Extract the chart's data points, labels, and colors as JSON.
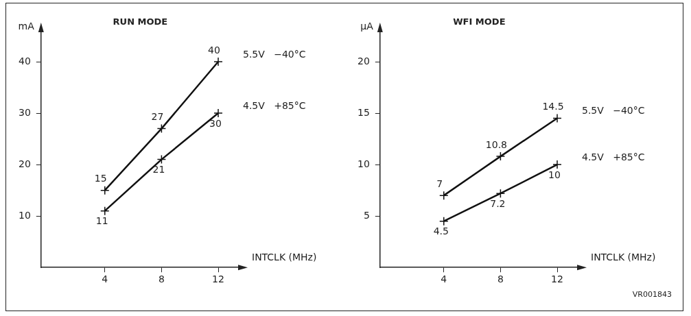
{
  "chart_data": [
    {
      "type": "line",
      "title": "RUN MODE",
      "ylabel": "mA",
      "xlabel": "INTCLK (MHz)",
      "x": [
        4,
        8,
        12
      ],
      "xlim": [
        -0.5,
        13.5
      ],
      "xticks": [
        4,
        8,
        12
      ],
      "ylim": [
        0,
        46
      ],
      "yticks": [
        10,
        20,
        30,
        40
      ],
      "grid": false,
      "legend": false,
      "marker": "cross",
      "line_style": "solid",
      "data_labels": true,
      "series": [
        {
          "name": "5.5V   −40°C",
          "color": "#111111",
          "values": [
            15,
            27,
            40
          ]
        },
        {
          "name": "4.5V   +85°C",
          "color": "#111111",
          "values": [
            11,
            21,
            30
          ]
        }
      ]
    },
    {
      "type": "line",
      "title": "WFI MODE",
      "ylabel": "µA",
      "xlabel": "INTCLK (MHz)",
      "x": [
        4,
        8,
        12
      ],
      "xlim": [
        -0.5,
        13.5
      ],
      "xticks": [
        4,
        8,
        12
      ],
      "ylim": [
        0,
        23
      ],
      "yticks": [
        5,
        10,
        15,
        20
      ],
      "grid": false,
      "legend": false,
      "marker": "cross",
      "line_style": "solid",
      "data_labels": true,
      "annotations": [
        "VR001843"
      ],
      "series": [
        {
          "name": "5.5V   −40°C",
          "color": "#111111",
          "values": [
            7,
            10.8,
            14.5
          ]
        },
        {
          "name": "4.5V   +85°C",
          "color": "#111111",
          "values": [
            4.5,
            7.2,
            10
          ]
        }
      ]
    }
  ]
}
